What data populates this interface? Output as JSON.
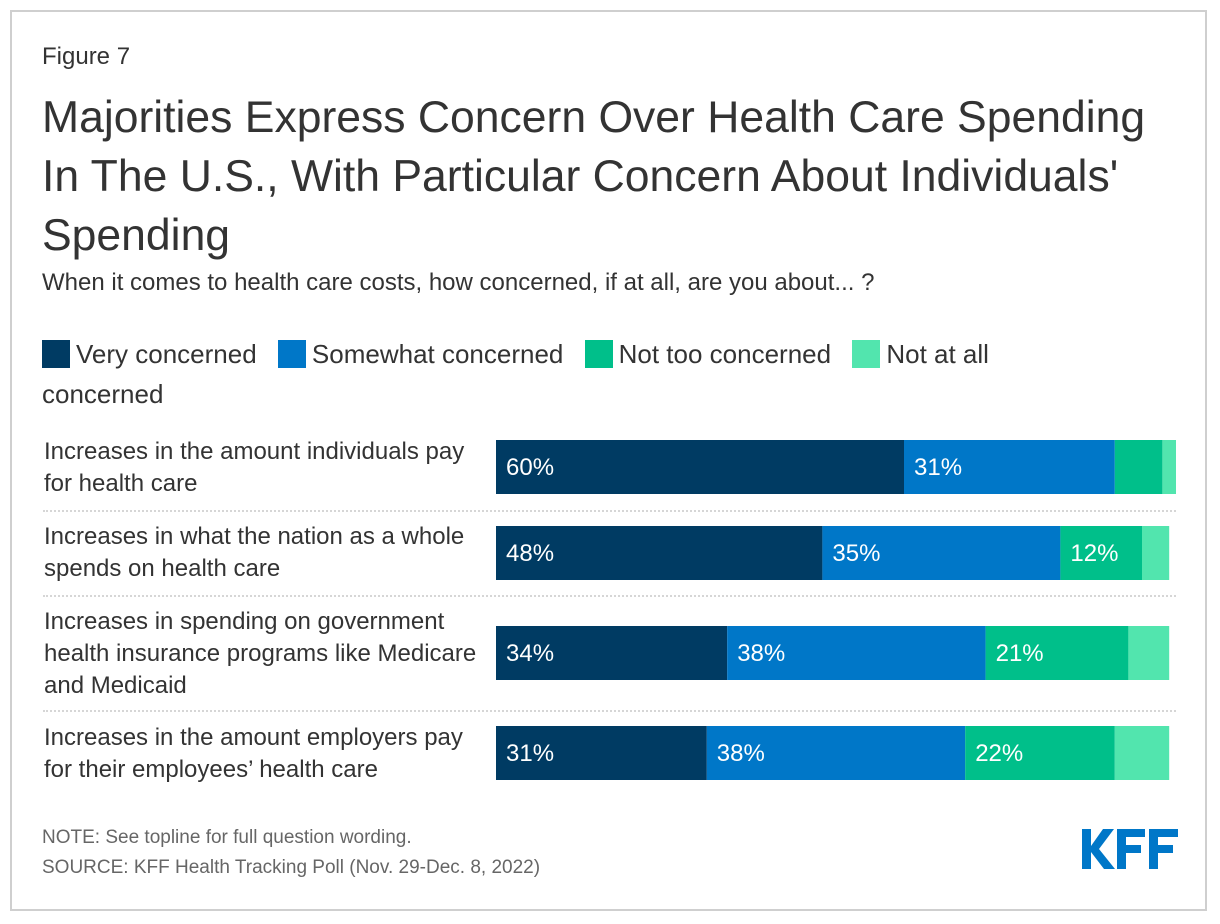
{
  "figure_label": "Figure 7",
  "title": "Majorities Express Concern Over Health Care Spending In The U.S., With Particular Concern About Individuals' Spending",
  "subtitle": "When it comes to health care costs, how concerned, if at all, are you about... ?",
  "legend": [
    {
      "label": "Very concerned",
      "color": "#003b63"
    },
    {
      "label": "Somewhat concerned",
      "color": "#0077c8"
    },
    {
      "label": "Not too concerned",
      "color": "#00bf8a"
    },
    {
      "label": "Not at all concerned",
      "color": "#52e5ae"
    }
  ],
  "notes": {
    "note": "NOTE: See topline for full question wording.",
    "source": "SOURCE: KFF Health Tracking Poll (Nov. 29-Dec. 8, 2022)"
  },
  "logo": {
    "text": "KFF",
    "color": "#0077c8"
  },
  "chart_data": {
    "type": "bar",
    "orientation": "horizontal",
    "stacked": true,
    "title": "Majorities Express Concern Over Health Care Spending In The U.S., With Particular Concern About Individuals' Spending",
    "subtitle": "When it comes to health care costs, how concerned, if at all, are you about... ?",
    "xlabel": "",
    "ylabel": "",
    "xlim": [
      0,
      100
    ],
    "grid": false,
    "legend_position": "top-left",
    "categories": [
      "Increases in the amount individuals pay for health care",
      "Increases in what the nation as a whole spends on health care",
      "Increases in spending on government health insurance programs like Medicare and Medicaid",
      "Increases in the amount employers pay for their employees’ health care"
    ],
    "series": [
      {
        "name": "Very concerned",
        "color": "#003b63",
        "values": [
          60,
          48,
          34,
          31
        ],
        "labels": [
          "60%",
          "48%",
          "34%",
          "31%"
        ]
      },
      {
        "name": "Somewhat concerned",
        "color": "#0077c8",
        "values": [
          31,
          35,
          38,
          38
        ],
        "labels": [
          "31%",
          "35%",
          "38%",
          "38%"
        ]
      },
      {
        "name": "Not too concerned",
        "color": "#00bf8a",
        "values": [
          7,
          12,
          21,
          22
        ],
        "labels": [
          "",
          "12%",
          "21%",
          "22%"
        ]
      },
      {
        "name": "Not at all concerned",
        "color": "#52e5ae",
        "values": [
          2,
          4,
          6,
          8
        ],
        "labels": [
          "",
          "",
          "",
          ""
        ]
      }
    ]
  }
}
